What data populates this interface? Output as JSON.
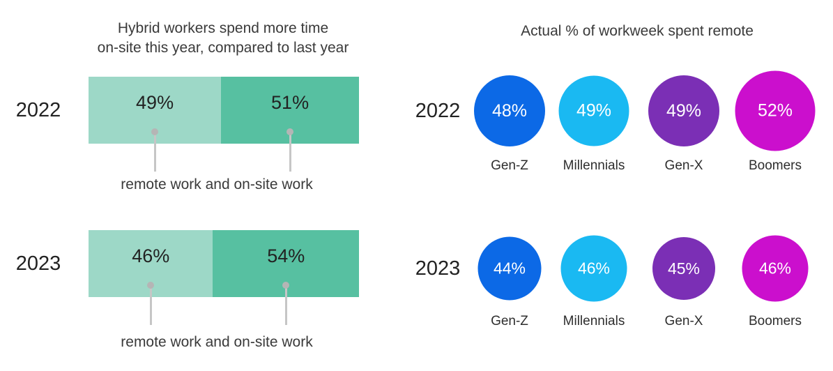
{
  "left_chart": {
    "title_line1": "Hybrid workers spend more time",
    "title_line2": "on-site this year, compared to last year",
    "caption": "remote work and on-site work",
    "colors": {
      "remote_fill": "#9dd8c7",
      "onsite_fill": "#57c0a1",
      "connector": "#b5b5b5",
      "text": "#222222"
    },
    "rows": [
      {
        "year": "2022",
        "remote_label": "49%",
        "remote_width": "49%",
        "onsite_label": "51%",
        "onsite_width": "51%"
      },
      {
        "year": "2023",
        "remote_label": "46%",
        "remote_width": "46%",
        "onsite_label": "54%",
        "onsite_width": "54%"
      }
    ]
  },
  "remote_chart": {
    "title": "Actual % of workweek spent remote",
    "rows": [
      {
        "year": "2022",
        "circles": [
          {
            "group": "Gen-Z",
            "label": "48%",
            "value": 48,
            "color": "#0c69e6",
            "size": "102px"
          },
          {
            "group": "Millennials",
            "label": "49%",
            "value": 49,
            "color": "#1ab9f2",
            "size": "101px"
          },
          {
            "group": "Gen-X",
            "label": "49%",
            "value": 49,
            "color": "#7b2fb5",
            "size": "102px"
          },
          {
            "group": "Boomers",
            "label": "52%",
            "value": 52,
            "color": "#cb0fcd",
            "size": "115px"
          }
        ]
      },
      {
        "year": "2023",
        "circles": [
          {
            "group": "Gen-Z",
            "label": "44%",
            "value": 44,
            "color": "#0c69e6",
            "size": "91px"
          },
          {
            "group": "Millennials",
            "label": "46%",
            "value": 46,
            "color": "#1ab9f2",
            "size": "95px"
          },
          {
            "group": "Gen-X",
            "label": "45%",
            "value": 45,
            "color": "#7b2fb5",
            "size": "90px"
          },
          {
            "group": "Boomers",
            "label": "46%",
            "value": 46,
            "color": "#cb0fcd",
            "size": "95px"
          }
        ]
      }
    ]
  },
  "chart_data": [
    {
      "type": "bar",
      "variant": "stacked-horizontal",
      "title": "Hybrid workers spend more time on-site this year, compared to last year",
      "categories": [
        "2022",
        "2023"
      ],
      "series": [
        {
          "name": "remote work",
          "values": [
            49,
            46
          ],
          "color": "#9dd8c7"
        },
        {
          "name": "on-site work",
          "values": [
            51,
            54
          ],
          "color": "#57c0a1"
        }
      ],
      "unit": "%",
      "annotation": "remote work and on-site work",
      "xlim": [
        0,
        100
      ],
      "grid": false,
      "legend": "callout below bars"
    },
    {
      "type": "bubble",
      "title": "Actual % of workweek spent remote",
      "categories": [
        "Gen-Z",
        "Millennials",
        "Gen-X",
        "Boomers"
      ],
      "series": [
        {
          "name": "2022",
          "values": [
            48,
            49,
            49,
            52
          ]
        },
        {
          "name": "2023",
          "values": [
            44,
            46,
            45,
            46
          ]
        }
      ],
      "unit": "%",
      "colors_by_category": [
        "#0c69e6",
        "#1ab9f2",
        "#7b2fb5",
        "#cb0fcd"
      ],
      "note": "bubble diameter proportional to value; value printed inside each bubble",
      "grid": false
    }
  ]
}
